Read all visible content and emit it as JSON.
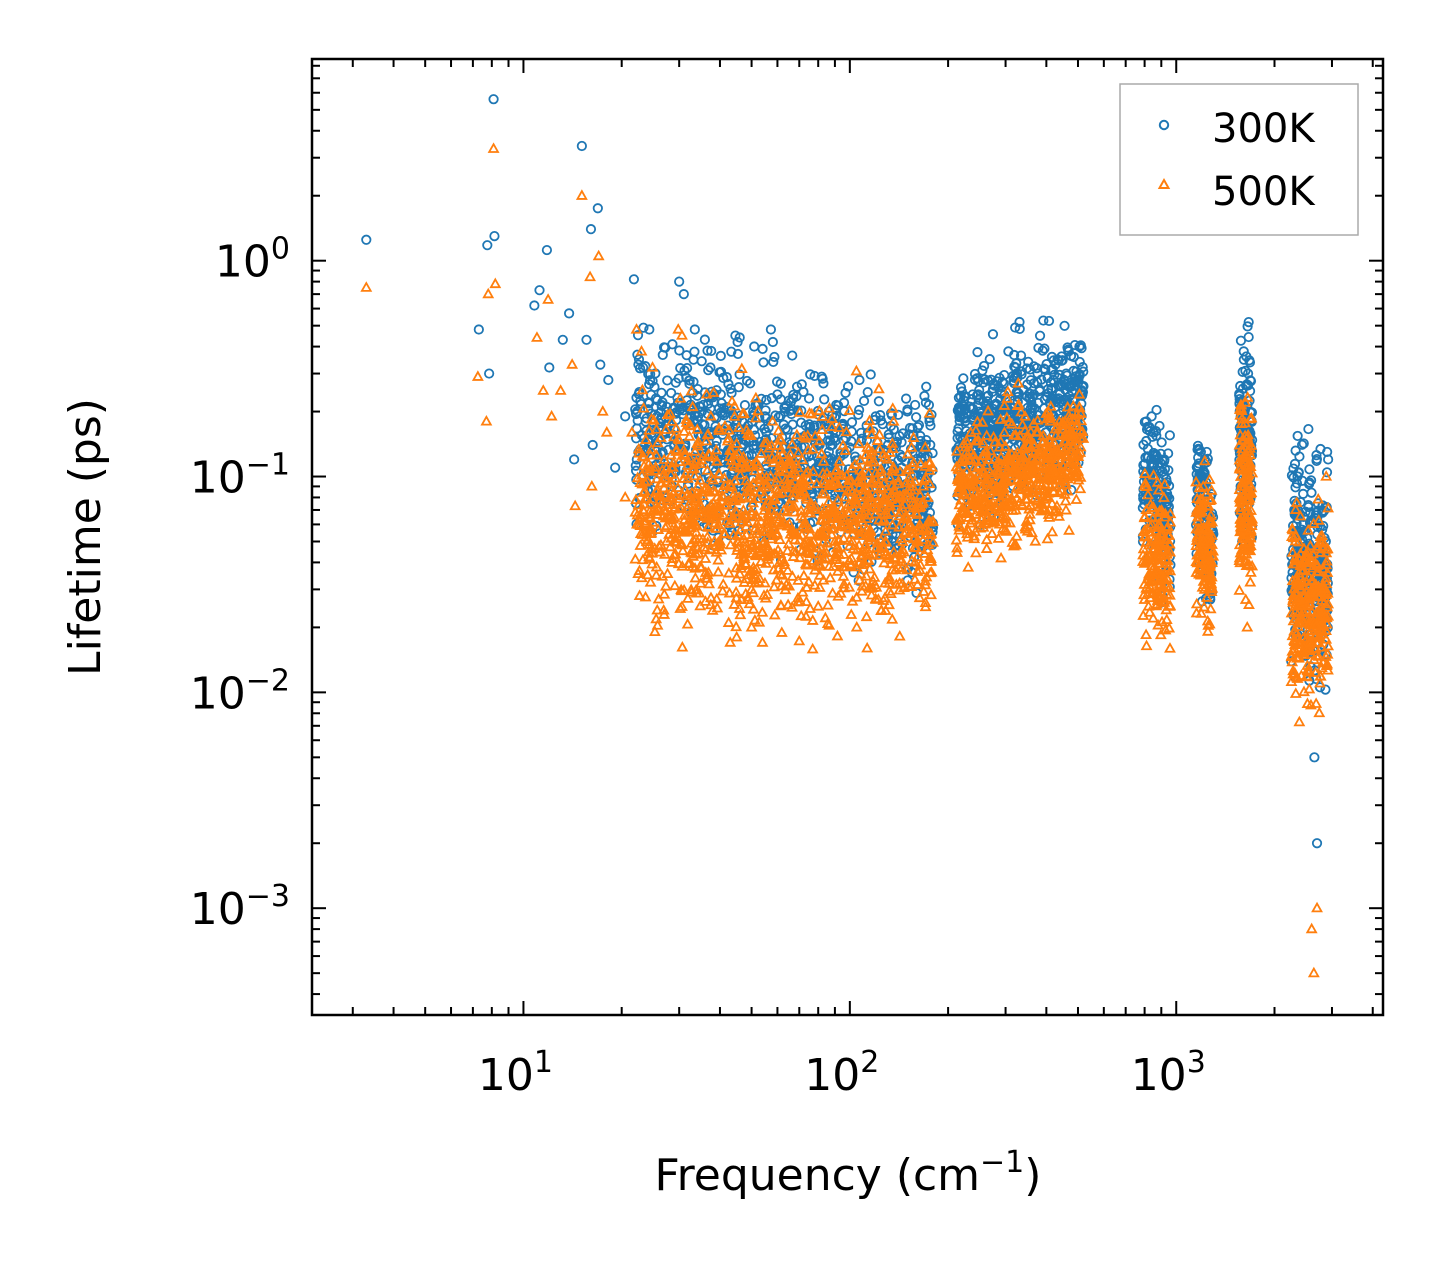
{
  "chart_data": {
    "type": "scatter",
    "title": "",
    "xlabel": "Frequency (cm",
    "xlabel_sup": "−1",
    "xlabel_end": ")",
    "ylabel": "Lifetime (ps)",
    "xscale": "log",
    "yscale": "log",
    "xlim": [
      2.25,
      4300
    ],
    "ylim": [
      0.00032,
      8.6
    ],
    "x_ticks": [
      {
        "value": 10,
        "base": "10",
        "exp": "1"
      },
      {
        "value": 100,
        "base": "10",
        "exp": "2"
      },
      {
        "value": 1000,
        "base": "10",
        "exp": "3"
      }
    ],
    "y_ticks": [
      {
        "value": 1,
        "base": "10",
        "exp": "0"
      },
      {
        "value": 0.1,
        "base": "10",
        "exp": "−1"
      },
      {
        "value": 0.01,
        "base": "10",
        "exp": "−2"
      },
      {
        "value": 0.001,
        "base": "10",
        "exp": "−3"
      }
    ],
    "legend_position": "top-right",
    "series": [
      {
        "name": "300K",
        "marker": "circle",
        "color": "#1f77b4",
        "points": [
          [
            3.3,
            1.25
          ],
          [
            7.3,
            0.48
          ],
          [
            7.75,
            1.18
          ],
          [
            7.85,
            0.3
          ],
          [
            8.1,
            5.6
          ],
          [
            8.15,
            1.3
          ],
          [
            10.8,
            0.62
          ],
          [
            11.2,
            0.73
          ],
          [
            11.8,
            1.12
          ],
          [
            12.0,
            0.32
          ],
          [
            13.2,
            0.43
          ],
          [
            13.8,
            0.57
          ],
          [
            14.3,
            0.12
          ],
          [
            15.1,
            3.4
          ],
          [
            15.6,
            0.43
          ],
          [
            16.1,
            1.4
          ],
          [
            16.3,
            0.14
          ],
          [
            16.9,
            1.75
          ],
          [
            17.2,
            0.33
          ],
          [
            18.2,
            0.28
          ],
          [
            19.1,
            0.11
          ],
          [
            20.5,
            0.19
          ],
          [
            21.8,
            0.82
          ],
          [
            22.5,
            0.33
          ],
          [
            24.3,
            0.48
          ],
          [
            25.2,
            0.26
          ],
          [
            27.5,
            0.21
          ],
          [
            28.6,
            0.41
          ],
          [
            30.0,
            0.8
          ],
          [
            31.0,
            0.7
          ],
          [
            33.5,
            0.48
          ],
          [
            35.2,
            0.2
          ],
          [
            37.4,
            0.32
          ],
          [
            44.6,
            0.45
          ],
          [
            45.3,
            0.42
          ],
          [
            49.5,
            0.27
          ],
          [
            57.3,
            0.48
          ],
          [
            58.1,
            0.42
          ],
          [
            60.0,
            0.24
          ],
          [
            67.0,
            0.23
          ],
          [
            82.0,
            0.29
          ],
          [
            83.0,
            0.27
          ],
          [
            96.0,
            0.22
          ],
          [
            107.0,
            0.28
          ],
          [
            120.0,
            0.19
          ],
          [
            150.0,
            0.2
          ],
          [
            171.0,
            0.22
          ],
          [
            215.0,
            0.096
          ],
          [
            238.0,
            0.24
          ],
          [
            268.0,
            0.19
          ],
          [
            306.0,
            0.38
          ],
          [
            321.0,
            0.49
          ],
          [
            331.0,
            0.52
          ],
          [
            352.0,
            0.34
          ],
          [
            376.0,
            0.3
          ],
          [
            420.0,
            0.28
          ],
          [
            460.0,
            0.3
          ],
          [
            505.0,
            0.4
          ],
          [
            810.0,
            0.18
          ],
          [
            850.0,
            0.16
          ],
          [
            920.0,
            0.12
          ],
          [
            1190.0,
            0.13
          ],
          [
            1240.0,
            0.13
          ],
          [
            1610.0,
            0.38
          ],
          [
            1640.0,
            0.36
          ],
          [
            1660.0,
            0.3
          ],
          [
            2300.0,
            0.07
          ],
          [
            2450.0,
            0.06
          ],
          [
            2650.0,
            0.005
          ],
          [
            2700.0,
            0.002
          ],
          [
            2900.0,
            0.13
          ],
          [
            2920.0,
            0.12
          ]
        ],
        "bands": [
          {
            "x": [
              22,
              180
            ],
            "center": [
              0.16,
              0.09
            ],
            "spread": 0.28,
            "count": 1100
          },
          {
            "x": [
              212,
              520
            ],
            "center": [
              0.14,
              0.22
            ],
            "spread": 0.22,
            "count": 650
          },
          {
            "x": [
              790,
              960
            ],
            "center": [
              0.11,
              0.06
            ],
            "spread": 0.25,
            "count": 170
          },
          {
            "x": [
              1150,
              1300
            ],
            "center": [
              0.08,
              0.05
            ],
            "spread": 0.22,
            "count": 130
          },
          {
            "x": [
              1560,
              1710
            ],
            "center": [
              0.15,
              0.12
            ],
            "spread": 0.3,
            "count": 150
          },
          {
            "x": [
              2250,
              2920
            ],
            "center": [
              0.045,
              0.035
            ],
            "spread": 0.35,
            "count": 300
          }
        ]
      },
      {
        "name": "500K",
        "marker": "triangle",
        "color": "#ff7f0e",
        "points": [
          [
            3.3,
            0.75
          ],
          [
            7.25,
            0.29
          ],
          [
            7.7,
            0.18
          ],
          [
            7.8,
            0.7
          ],
          [
            8.1,
            3.3
          ],
          [
            8.2,
            0.78
          ],
          [
            11.0,
            0.44
          ],
          [
            11.5,
            0.25
          ],
          [
            11.9,
            0.66
          ],
          [
            12.2,
            0.19
          ],
          [
            13.0,
            0.25
          ],
          [
            14.1,
            0.33
          ],
          [
            14.4,
            0.073
          ],
          [
            15.1,
            2.0
          ],
          [
            16.0,
            0.84
          ],
          [
            16.2,
            0.09
          ],
          [
            17.0,
            1.05
          ],
          [
            17.5,
            0.2
          ],
          [
            18.0,
            0.16
          ],
          [
            20.5,
            0.08
          ],
          [
            21.5,
            0.16
          ],
          [
            22.2,
            0.48
          ],
          [
            23.0,
            0.38
          ],
          [
            24.5,
            0.11
          ],
          [
            25.7,
            0.024
          ],
          [
            29.8,
            0.48
          ],
          [
            30.6,
            0.45
          ],
          [
            33.0,
            0.21
          ],
          [
            37.5,
            0.19
          ],
          [
            41.0,
            0.08
          ],
          [
            43.0,
            0.017
          ],
          [
            45.0,
            0.018
          ],
          [
            50.0,
            0.02
          ],
          [
            54.0,
            0.017
          ],
          [
            58.0,
            0.18
          ],
          [
            61.0,
            0.12
          ],
          [
            80.0,
            0.025
          ],
          [
            105.0,
            0.02
          ],
          [
            113.0,
            0.016
          ],
          [
            125.0,
            0.024
          ],
          [
            168.0,
            0.09
          ],
          [
            218.0,
            0.058
          ],
          [
            226.0,
            0.12
          ],
          [
            260.0,
            0.06
          ],
          [
            328.0,
            0.27
          ],
          [
            370.0,
            0.05
          ],
          [
            505.0,
            0.24
          ],
          [
            810.0,
            0.07
          ],
          [
            850.0,
            0.022
          ],
          [
            1210.0,
            0.09
          ],
          [
            1280.0,
            0.03
          ],
          [
            1630.0,
            0.22
          ],
          [
            1650.0,
            0.02
          ],
          [
            2300.0,
            0.03
          ],
          [
            2600.0,
            0.0008
          ],
          [
            2640.0,
            0.0005
          ],
          [
            2700.0,
            0.001
          ],
          [
            2880.0,
            0.1
          ]
        ],
        "bands": [
          {
            "x": [
              22,
              180
            ],
            "center": [
              0.07,
              0.06
            ],
            "spread": 0.32,
            "count": 1300
          },
          {
            "x": [
              212,
              520
            ],
            "center": [
              0.08,
              0.13
            ],
            "spread": 0.2,
            "count": 600
          },
          {
            "x": [
              790,
              960
            ],
            "center": [
              0.05,
              0.035
            ],
            "spread": 0.25,
            "count": 170
          },
          {
            "x": [
              1150,
              1300
            ],
            "center": [
              0.05,
              0.04
            ],
            "spread": 0.22,
            "count": 130
          },
          {
            "x": [
              1560,
              1710
            ],
            "center": [
              0.09,
              0.07
            ],
            "spread": 0.3,
            "count": 150
          },
          {
            "x": [
              2250,
              2920
            ],
            "center": [
              0.025,
              0.025
            ],
            "spread": 0.3,
            "count": 280
          }
        ]
      }
    ]
  }
}
